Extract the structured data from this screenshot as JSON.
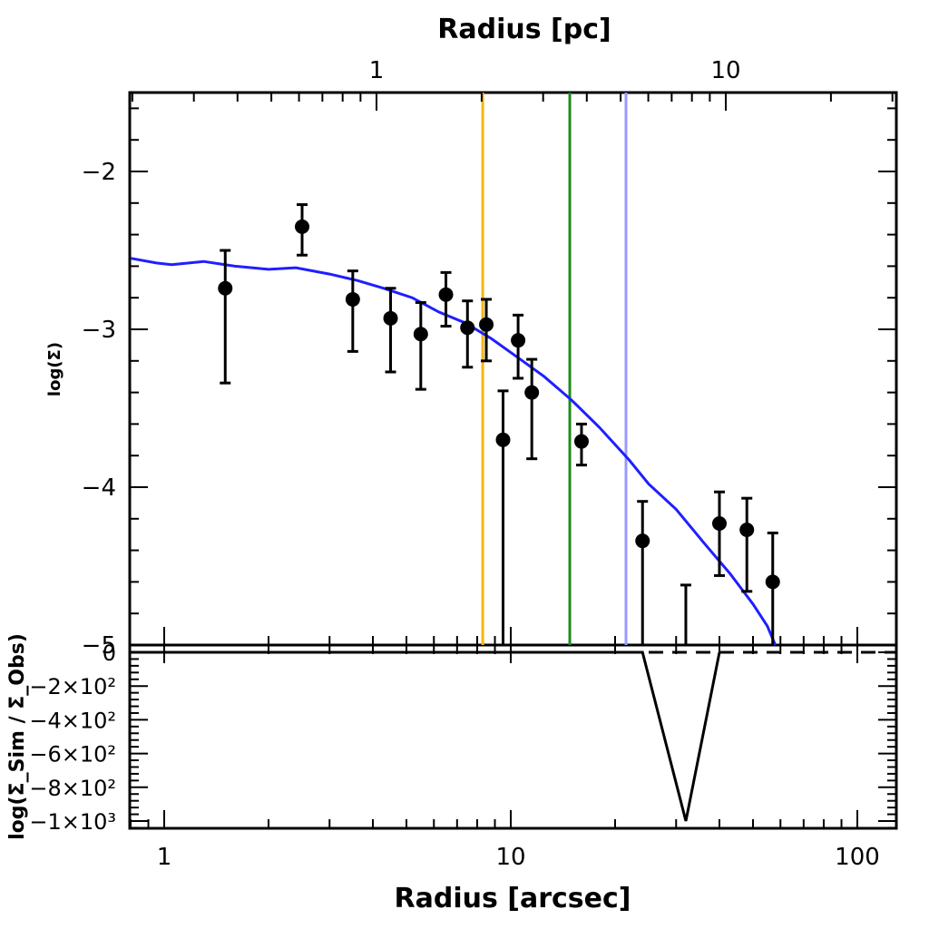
{
  "chart_data": {
    "type": "scatter",
    "top_axis": {
      "label": "Radius [pc]",
      "scale": "log",
      "ticks": [
        {
          "value": 1,
          "label": "1"
        },
        {
          "value": 10,
          "label": "10"
        }
      ]
    },
    "main_panel": {
      "ylabel": "log(Σ)",
      "xscale": "log",
      "xlim": [
        0.8,
        130
      ],
      "ylim": [
        -5.0,
        -1.5
      ],
      "yticks": [
        {
          "value": -2,
          "label": "−2"
        },
        {
          "value": -3,
          "label": "−3"
        },
        {
          "value": -4,
          "label": "−4"
        },
        {
          "value": -5,
          "label": "−5"
        }
      ],
      "points": [
        {
          "x": 1.5,
          "y": -2.74,
          "ylo": -3.34,
          "yhi": -2.5
        },
        {
          "x": 2.5,
          "y": -2.35,
          "ylo": -2.53,
          "yhi": -2.21
        },
        {
          "x": 3.5,
          "y": -2.81,
          "ylo": -3.14,
          "yhi": -2.63
        },
        {
          "x": 4.5,
          "y": -2.93,
          "ylo": -3.27,
          "yhi": -2.74
        },
        {
          "x": 5.5,
          "y": -3.03,
          "ylo": -3.38,
          "yhi": -2.83
        },
        {
          "x": 6.5,
          "y": -2.78,
          "ylo": -2.98,
          "yhi": -2.64
        },
        {
          "x": 7.5,
          "y": -2.99,
          "ylo": -3.24,
          "yhi": -2.82
        },
        {
          "x": 8.5,
          "y": -2.97,
          "ylo": -3.2,
          "yhi": -2.81
        },
        {
          "x": 9.5,
          "y": -3.7,
          "ylo": -5.0,
          "yhi": -3.39
        },
        {
          "x": 10.5,
          "y": -3.07,
          "ylo": -3.31,
          "yhi": -2.91
        },
        {
          "x": 11.5,
          "y": -3.4,
          "ylo": -3.82,
          "yhi": -3.19
        },
        {
          "x": 16.0,
          "y": -3.71,
          "ylo": -3.86,
          "yhi": -3.6
        },
        {
          "x": 24.0,
          "y": -4.34,
          "ylo": -5.0,
          "yhi": -4.09
        },
        {
          "x": 32.0,
          "y": null,
          "ylo": -5.0,
          "yhi": -4.62
        },
        {
          "x": 40.0,
          "y": -4.23,
          "ylo": -4.56,
          "yhi": -4.03
        },
        {
          "x": 48.0,
          "y": -4.27,
          "ylo": -4.66,
          "yhi": -4.07
        },
        {
          "x": 57.0,
          "y": -4.6,
          "ylo": -5.0,
          "yhi": -4.29
        }
      ],
      "model_curve": {
        "color": "#1f1fff",
        "x": [
          0.8,
          0.95,
          1.05,
          1.3,
          1.6,
          2.0,
          2.4,
          3.0,
          3.6,
          4.3,
          5.2,
          6.2,
          7.4,
          8.8,
          10.5,
          12.5,
          15.0,
          18.0,
          22.0,
          25.0,
          30.0,
          36.0,
          43.0,
          50.0,
          55.0,
          58.0
        ],
        "y": [
          -2.55,
          -2.58,
          -2.59,
          -2.57,
          -2.6,
          -2.62,
          -2.61,
          -2.65,
          -2.69,
          -2.74,
          -2.8,
          -2.89,
          -2.96,
          -3.06,
          -3.18,
          -3.3,
          -3.45,
          -3.62,
          -3.83,
          -3.98,
          -4.14,
          -4.35,
          -4.55,
          -4.74,
          -4.88,
          -5.0
        ]
      },
      "vertical_lines": [
        {
          "x": 8.3,
          "color": "#f7b500"
        },
        {
          "x": 14.8,
          "color": "#1e8c1e"
        },
        {
          "x": 21.5,
          "color": "#9a9aff"
        }
      ]
    },
    "residual_panel": {
      "ylabel": "log(Σ_Sim / Σ_Obs)",
      "xlabel": "Radius [arcsec]",
      "xticks": [
        {
          "value": 1,
          "label": "1"
        },
        {
          "value": 10,
          "label": "10"
        },
        {
          "value": 100,
          "label": "100"
        }
      ],
      "ylim": [
        -1050,
        0
      ],
      "yticks": [
        {
          "value": 0,
          "label": "0"
        },
        {
          "value": -200,
          "label": "−2×10²"
        },
        {
          "value": -400,
          "label": "−4×10²"
        },
        {
          "value": -600,
          "label": "−6×10²"
        },
        {
          "value": -800,
          "label": "−8×10²"
        },
        {
          "value": -1000,
          "label": "−1×10³"
        }
      ],
      "reference_line": 0,
      "residual_line": {
        "x": [
          20.0,
          24.0,
          32.0,
          40.0
        ],
        "y": [
          0,
          0,
          -1000,
          0
        ]
      }
    }
  }
}
